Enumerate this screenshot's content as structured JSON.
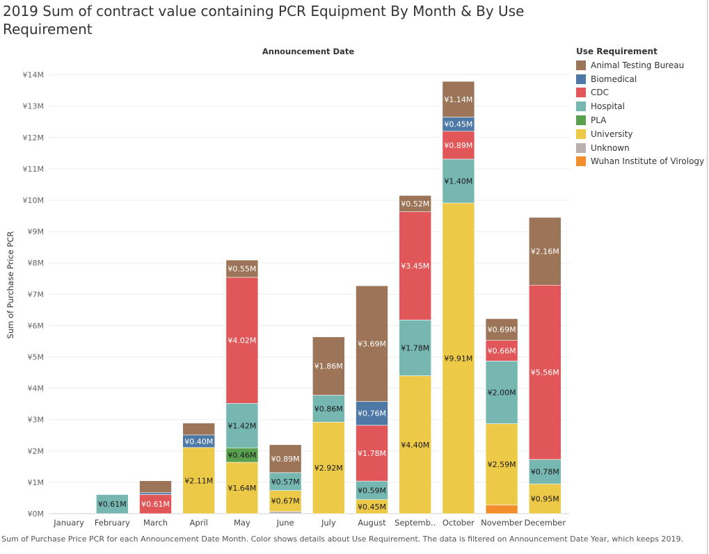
{
  "title": "2019 Sum of contract value containing PCR Equipment By Month & By Use Requirement",
  "caption": "Sum of Purchase Price PCR for each Announcement Date Month.  Color shows details about Use Requirement. The data is filtered on Announcement Date Year, which keeps 2019.",
  "colors": {
    "Animal Testing Bureau": "#9c7457",
    "Biomedical": "#4e79a7",
    "CDC": "#e15759",
    "Hospital": "#76b7b2",
    "PLA": "#59a14f",
    "University": "#edc948",
    "Unknown": "#bab0ac",
    "Wuhan Institute of Virology": "#f28e2b"
  },
  "legend": {
    "title": "Use Requirement",
    "items": [
      "Animal Testing Bureau",
      "Biomedical",
      "CDC",
      "Hospital",
      "PLA",
      "University",
      "Unknown",
      "Wuhan Institute of Virology"
    ]
  },
  "chart_data": {
    "type": "bar",
    "stacked": true,
    "title": "2019 Sum of contract value containing PCR Equipment By Month & By Use Requirement",
    "xlabel": "Announcement Date",
    "ylabel": "Sum of Purchase Price PCR",
    "ylim": [
      0,
      14.3
    ],
    "yticks": [
      "¥0M",
      "¥1M",
      "¥2M",
      "¥3M",
      "¥4M",
      "¥5M",
      "¥6M",
      "¥7M",
      "¥8M",
      "¥9M",
      "¥10M",
      "¥11M",
      "¥12M",
      "¥13M",
      "¥14M"
    ],
    "grid": true,
    "legend_position": "right",
    "categories": [
      "January",
      "February",
      "March",
      "April",
      "May",
      "June",
      "July",
      "August",
      "Septemb..",
      "October",
      "November",
      "December"
    ],
    "stack_order": [
      "Wuhan Institute of Virology",
      "Unknown",
      "University",
      "PLA",
      "Hospital",
      "CDC",
      "Biomedical",
      "Animal Testing Bureau"
    ],
    "series": [
      {
        "name": "Wuhan Institute of Virology",
        "values": [
          0,
          0,
          0,
          0,
          0,
          0,
          0,
          0,
          0,
          0,
          0.28,
          0
        ]
      },
      {
        "name": "Unknown",
        "values": [
          0,
          0,
          0,
          0,
          0,
          0.07,
          0,
          0,
          0,
          0,
          0,
          0
        ]
      },
      {
        "name": "University",
        "values": [
          0,
          0,
          0,
          2.11,
          1.64,
          0.67,
          2.92,
          0.45,
          4.4,
          9.91,
          2.59,
          0.95
        ]
      },
      {
        "name": "PLA",
        "values": [
          0,
          0,
          0,
          0,
          0.46,
          0,
          0,
          0,
          0,
          0,
          0,
          0
        ]
      },
      {
        "name": "Hospital",
        "values": [
          0,
          0.61,
          0,
          0,
          1.42,
          0.57,
          0.86,
          0.59,
          1.78,
          1.4,
          2.0,
          0.78
        ]
      },
      {
        "name": "CDC",
        "values": [
          0,
          0,
          0.61,
          0,
          4.02,
          0,
          0,
          1.78,
          3.45,
          0.89,
          0.66,
          5.56
        ]
      },
      {
        "name": "Biomedical",
        "values": [
          0,
          0,
          0.06,
          0.4,
          0,
          0,
          0,
          0.76,
          0,
          0.45,
          0,
          0
        ]
      },
      {
        "name": "Animal Testing Bureau",
        "values": [
          0,
          0,
          0.38,
          0.38,
          0.55,
          0.89,
          1.86,
          3.69,
          0.52,
          1.14,
          0.69,
          2.16
        ]
      }
    ],
    "data_labels": [
      {
        "category": "February",
        "series": "Hospital",
        "text": "¥0.61M"
      },
      {
        "category": "March",
        "series": "CDC",
        "text": "¥0.61M"
      },
      {
        "category": "April",
        "series": "University",
        "text": "¥2.11M"
      },
      {
        "category": "April",
        "series": "Biomedical",
        "text": "¥0.40M"
      },
      {
        "category": "May",
        "series": "University",
        "text": "¥1.64M"
      },
      {
        "category": "May",
        "series": "PLA",
        "text": "¥0.46M"
      },
      {
        "category": "May",
        "series": "Hospital",
        "text": "¥1.42M"
      },
      {
        "category": "May",
        "series": "CDC",
        "text": "¥4.02M"
      },
      {
        "category": "May",
        "series": "Animal Testing Bureau",
        "text": "¥0.55M"
      },
      {
        "category": "June",
        "series": "University",
        "text": "¥0.67M"
      },
      {
        "category": "June",
        "series": "Hospital",
        "text": "¥0.57M"
      },
      {
        "category": "June",
        "series": "Animal Testing Bureau",
        "text": "¥0.89M"
      },
      {
        "category": "July",
        "series": "University",
        "text": "¥2.92M"
      },
      {
        "category": "July",
        "series": "Hospital",
        "text": "¥0.86M"
      },
      {
        "category": "July",
        "series": "Animal Testing Bureau",
        "text": "¥1.86M"
      },
      {
        "category": "August",
        "series": "University",
        "text": "¥0.45M"
      },
      {
        "category": "August",
        "series": "Hospital",
        "text": "¥0.59M"
      },
      {
        "category": "August",
        "series": "CDC",
        "text": "¥1.78M"
      },
      {
        "category": "August",
        "series": "Biomedical",
        "text": "¥0.76M"
      },
      {
        "category": "August",
        "series": "Animal Testing Bureau",
        "text": "¥3.69M"
      },
      {
        "category": "Septemb..",
        "series": "University",
        "text": "¥4.40M"
      },
      {
        "category": "Septemb..",
        "series": "Hospital",
        "text": "¥1.78M"
      },
      {
        "category": "Septemb..",
        "series": "CDC",
        "text": "¥3.45M"
      },
      {
        "category": "Septemb..",
        "series": "Animal Testing Bureau",
        "text": "¥0.52M"
      },
      {
        "category": "October",
        "series": "University",
        "text": "¥9.91M"
      },
      {
        "category": "October",
        "series": "Hospital",
        "text": "¥1.40M"
      },
      {
        "category": "October",
        "series": "CDC",
        "text": "¥0.89M"
      },
      {
        "category": "October",
        "series": "Biomedical",
        "text": "¥0.45M"
      },
      {
        "category": "October",
        "series": "Animal Testing Bureau",
        "text": "¥1.14M"
      },
      {
        "category": "November",
        "series": "University",
        "text": "¥2.59M"
      },
      {
        "category": "November",
        "series": "Hospital",
        "text": "¥2.00M"
      },
      {
        "category": "November",
        "series": "CDC",
        "text": "¥0.66M"
      },
      {
        "category": "November",
        "series": "Animal Testing Bureau",
        "text": "¥0.69M"
      },
      {
        "category": "December",
        "series": "University",
        "text": "¥0.95M"
      },
      {
        "category": "December",
        "series": "Hospital",
        "text": "¥0.78M"
      },
      {
        "category": "December",
        "series": "CDC",
        "text": "¥5.56M"
      },
      {
        "category": "December",
        "series": "Animal Testing Bureau",
        "text": "¥2.16M"
      }
    ]
  }
}
